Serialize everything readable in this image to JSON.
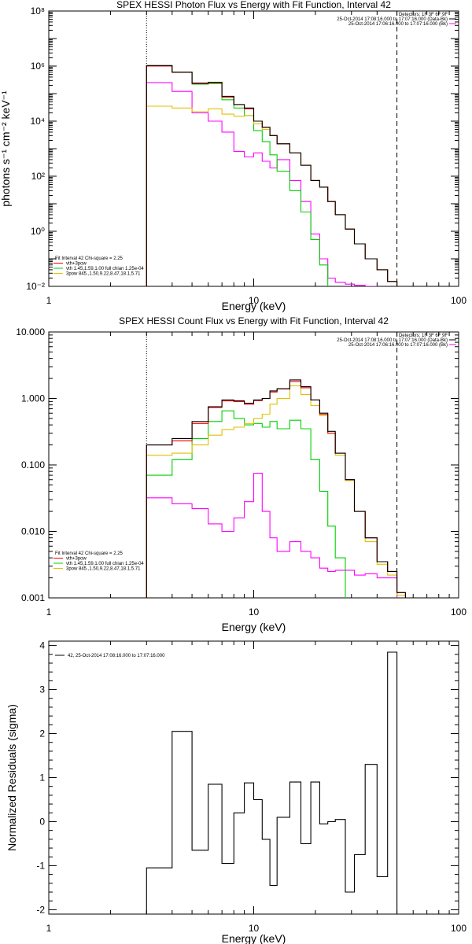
{
  "chart_data": [
    {
      "type": "line",
      "title": "SPEX HESSI Photon Flux vs Energy with Fit Function, Interval 42",
      "xlabel": "Energy (keV)",
      "ylabel": "photons s⁻¹ cm⁻² keV⁻¹",
      "xscale": "log",
      "yscale": "log",
      "xlim": [
        1,
        100
      ],
      "ylim": [
        0.01,
        100000000
      ],
      "x_ticks": [
        1,
        10,
        100
      ],
      "x_tick_labels": [
        "1",
        "10",
        "100"
      ],
      "y_ticks": [
        0.01,
        1,
        100,
        10000,
        1000000,
        100000000
      ],
      "y_tick_labels": [
        "10⁻²",
        "10⁰",
        "10²",
        "10⁴",
        "10⁶",
        "10⁸"
      ],
      "vlines": [
        {
          "x": 3,
          "style": "dotted"
        },
        {
          "x": 50,
          "style": "dashed"
        }
      ],
      "edges": [
        3,
        4,
        5,
        6,
        7,
        8,
        9,
        10,
        11,
        12,
        13,
        15,
        17,
        19,
        21,
        23,
        25,
        28,
        31,
        35,
        40,
        45,
        50,
        55
      ],
      "top_legend": [
        {
          "text": "Detectors: 1F 3F 6F 9F",
          "color": "#000000"
        },
        {
          "text": "25-Oct-2014 17:08:16.000 to 17:07:16.000 (Data-Bk)",
          "color": "#000000"
        },
        {
          "text": "25-Oct-2014 17:06:16.000 to 17:07:16.000 (Bk)",
          "color": "#ff00ff"
        }
      ],
      "fit_legend": [
        {
          "text": "Fit Interval 42   Chi-square = 2.25",
          "color": "#000000"
        },
        {
          "text": "vth+3pow",
          "color": "#ff0000"
        },
        {
          "text": "vth 1.45,1.59,1.00  full chian 1.25e-04",
          "color": "#00d000"
        },
        {
          "text": "3pow 845.,1.50,9.22,8.47,18.1,5.71",
          "color": "#e0c000"
        }
      ],
      "series": [
        {
          "name": "Data-Bk",
          "color": "#000000",
          "values": [
            1050000,
            600000,
            240000,
            260000,
            80000,
            40000,
            30000,
            10000,
            6000,
            3000,
            1500,
            700,
            250,
            70,
            40,
            12,
            4,
            1.2,
            0.35,
            0.1,
            0.04,
            0.015,
            0.01
          ]
        },
        {
          "name": "vth+3pow",
          "color": "#ff0000",
          "values": [
            1000000,
            600000,
            230000,
            250000,
            75000,
            40000,
            28000,
            10000,
            6000,
            3000,
            1500,
            700,
            250,
            70,
            40,
            12,
            4,
            1.2,
            0.35,
            0.1,
            0.04,
            0.015,
            0.01
          ]
        },
        {
          "name": "vth",
          "color": "#00d000",
          "values": [
            1000000,
            600000,
            220000,
            230000,
            60000,
            30000,
            16000,
            4500,
            1800,
            600,
            150,
            30,
            5,
            0.5,
            0.06,
            0.008,
            0.008,
            0.008,
            0.008,
            0.008,
            0.008,
            0.008,
            0.008
          ]
        },
        {
          "name": "3pow",
          "color": "#e0c000",
          "values": [
            35000,
            30000,
            22000,
            28000,
            18000,
            15000,
            16000,
            8000,
            5000,
            3000,
            1500,
            700,
            250,
            70,
            40,
            12,
            4,
            1.2,
            0.35,
            0.1,
            0.04,
            0.015,
            0.01
          ]
        },
        {
          "name": "Bk",
          "color": "#ff00ff",
          "values": [
            250000,
            120000,
            20000,
            10000,
            4000,
            800,
            500,
            700,
            350,
            200,
            400,
            70,
            12,
            0.8,
            0.1,
            0.02,
            0.014,
            0.012,
            0.011,
            0.01,
            0.009,
            0.008,
            0.008
          ]
        }
      ]
    },
    {
      "type": "line",
      "title": "SPEX HESSI Count Flux vs Energy with Fit Function, Interval 42",
      "xlabel": "Energy (keV)",
      "ylabel": "",
      "xscale": "log",
      "yscale": "log",
      "xlim": [
        1,
        100
      ],
      "ylim": [
        0.001,
        10
      ],
      "x_ticks": [
        1,
        10,
        100
      ],
      "x_tick_labels": [
        "1",
        "10",
        "100"
      ],
      "y_ticks": [
        0.001,
        0.01,
        0.1,
        1,
        10
      ],
      "y_tick_labels": [
        "0.001",
        "0.010",
        "0.100",
        "1.000",
        "10.000"
      ],
      "vlines": [
        {
          "x": 3,
          "style": "dotted"
        },
        {
          "x": 50,
          "style": "dashed"
        }
      ],
      "edges": [
        3,
        4,
        5,
        6,
        7,
        8,
        9,
        10,
        11,
        12,
        13,
        15,
        17,
        19,
        21,
        23,
        25,
        28,
        31,
        35,
        40,
        45,
        50,
        55
      ],
      "top_legend": [
        {
          "text": "Detectors: 1F 3F 6F 9F",
          "color": "#000000"
        },
        {
          "text": "25-Oct-2014 17:08:16.000 to 17:07:16.000 (Data-Bk)",
          "color": "#000000"
        },
        {
          "text": "25-Oct-2014 17:06:16.000 to 17:07:16.000 (Bk)",
          "color": "#ff00ff"
        }
      ],
      "fit_legend": [
        {
          "text": "Fit Interval 42   Chi-square = 2.25",
          "color": "#000000"
        },
        {
          "text": "vth+3pow",
          "color": "#ff0000"
        },
        {
          "text": "vth 1.45,1.59,1.00  full chian 1.25e-04",
          "color": "#00d000"
        },
        {
          "text": "3pow 845.,1.50,9.22,8.47,18.1,5.71",
          "color": "#e0c000"
        }
      ],
      "series": [
        {
          "name": "Data-Bk",
          "color": "#000000",
          "values": [
            0.2,
            0.25,
            0.45,
            0.75,
            0.95,
            0.92,
            0.85,
            0.95,
            1.0,
            1.3,
            1.4,
            1.9,
            1.5,
            0.95,
            0.6,
            0.32,
            0.15,
            0.06,
            0.02,
            0.008,
            0.0035,
            0.0025,
            0.0012
          ]
        },
        {
          "name": "vth+3pow",
          "color": "#ff0000",
          "values": [
            0.2,
            0.23,
            0.42,
            0.73,
            0.92,
            0.9,
            0.82,
            0.93,
            1.0,
            1.25,
            1.4,
            1.8,
            1.45,
            0.95,
            0.58,
            0.3,
            0.15,
            0.06,
            0.02,
            0.008,
            0.0035,
            0.0025,
            0.0012
          ]
        },
        {
          "name": "vth",
          "color": "#00d000",
          "values": [
            0.07,
            0.12,
            0.25,
            0.45,
            0.65,
            0.5,
            0.4,
            0.42,
            0.37,
            0.45,
            0.35,
            0.47,
            0.35,
            0.12,
            0.04,
            0.012,
            0.004,
            0.0009,
            0.0009,
            0.0009,
            0.0009,
            0.0009,
            0.0009
          ]
        },
        {
          "name": "3pow",
          "color": "#e0c000",
          "values": [
            0.14,
            0.15,
            0.2,
            0.28,
            0.34,
            0.37,
            0.42,
            0.5,
            0.58,
            0.82,
            1.0,
            1.55,
            1.15,
            0.78,
            0.55,
            0.3,
            0.14,
            0.058,
            0.02,
            0.007,
            0.0032,
            0.0022,
            0.0011
          ]
        },
        {
          "name": "Bk",
          "color": "#ff00ff",
          "values": [
            0.032,
            0.026,
            0.022,
            0.013,
            0.01,
            0.016,
            0.028,
            0.075,
            0.02,
            0.008,
            0.005,
            0.007,
            0.005,
            0.004,
            0.0028,
            0.0025,
            0.0026,
            0.0026,
            0.0022,
            0.0023,
            0.002,
            0.002,
            0.0008
          ]
        }
      ]
    },
    {
      "type": "line",
      "title": "",
      "xlabel": "Energy (keV)",
      "ylabel": "Normalized Residuals (sigma)",
      "xscale": "log",
      "yscale": "linear",
      "xlim": [
        1,
        100
      ],
      "ylim": [
        -2.1,
        4.1
      ],
      "x_ticks": [
        1,
        10,
        100
      ],
      "x_tick_labels": [
        "1",
        "10",
        "100"
      ],
      "y_ticks": [
        -2,
        -1,
        0,
        1,
        2,
        3,
        4
      ],
      "y_tick_labels": [
        "-2",
        "-1",
        "0",
        "1",
        "2",
        "3",
        "4"
      ],
      "edges": [
        3,
        4,
        5,
        6,
        7,
        8,
        9,
        10,
        11,
        12,
        13,
        15,
        17,
        19,
        21,
        23,
        25,
        28,
        31,
        35,
        40,
        45,
        50,
        55
      ],
      "legend": [
        {
          "text": "42, 25-Oct-2014 17:08:16.000 to 17:07:16.000",
          "color": "#000000"
        }
      ],
      "series": [
        {
          "name": "42, 25-Oct-2014 17:08:16.000 to 17:07:16.000",
          "color": "#000000",
          "values": [
            -1.05,
            2.05,
            -0.65,
            0.85,
            -0.95,
            0.2,
            0.88,
            0.5,
            -0.4,
            -1.45,
            0.1,
            0.9,
            -0.5,
            0.9,
            -0.05,
            0.0,
            0.05,
            -1.6,
            -0.75,
            1.3,
            -1.25,
            3.85
          ]
        }
      ]
    }
  ]
}
